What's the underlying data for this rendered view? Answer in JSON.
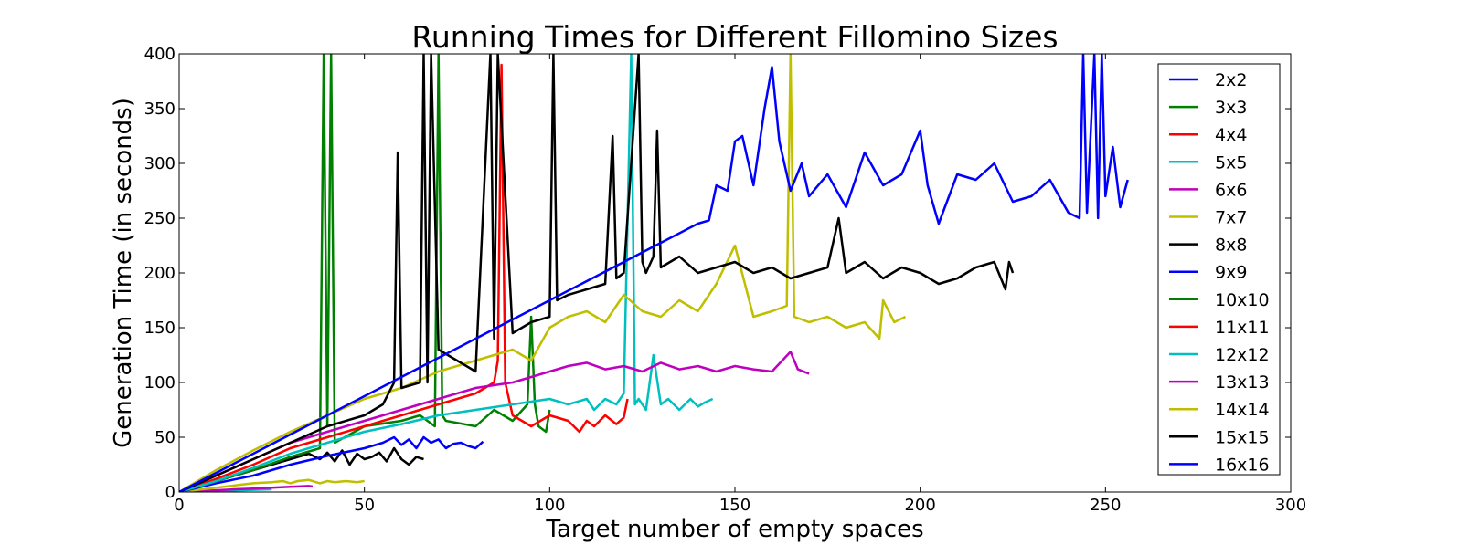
{
  "chart_data": {
    "type": "line",
    "title": "Running Times for Different Fillomino Sizes",
    "xlabel": "Target number of empty spaces",
    "ylabel": "Generation Time (in seconds)",
    "xlim": [
      0,
      300
    ],
    "ylim": [
      0,
      400
    ],
    "xticks": [
      "0",
      "50",
      "100",
      "150",
      "200",
      "250",
      "300"
    ],
    "yticks": [
      "0",
      "50",
      "100",
      "150",
      "200",
      "250",
      "300",
      "350",
      "400"
    ],
    "grid": false,
    "legend_position": "right",
    "series": [
      {
        "name": "2x2",
        "color": "#0000ff",
        "x": [
          0,
          1,
          2,
          3,
          4
        ],
        "y": [
          0,
          0.05,
          0.1,
          0.15,
          0.2
        ]
      },
      {
        "name": "3x3",
        "color": "#008000",
        "x": [
          0,
          3,
          6,
          9
        ],
        "y": [
          0,
          0.2,
          0.4,
          0.6
        ]
      },
      {
        "name": "4x4",
        "color": "#ff0000",
        "x": [
          0,
          4,
          8,
          12,
          16
        ],
        "y": [
          0,
          0.5,
          1,
          1.5,
          2
        ]
      },
      {
        "name": "5x5",
        "color": "#00bfbf",
        "x": [
          0,
          5,
          10,
          15,
          20,
          25
        ],
        "y": [
          0,
          0.5,
          1,
          1.5,
          2,
          2.5
        ]
      },
      {
        "name": "6x6",
        "color": "#bf00bf",
        "x": [
          0,
          5,
          10,
          15,
          20,
          25,
          30,
          35,
          36
        ],
        "y": [
          0,
          0.8,
          1.6,
          2.5,
          3.2,
          4.0,
          4.8,
          5.5,
          5
        ]
      },
      {
        "name": "7x7",
        "color": "#bfbf00",
        "x": [
          0,
          5,
          10,
          15,
          20,
          25,
          28,
          30,
          32,
          35,
          38,
          40,
          42,
          45,
          48,
          50
        ],
        "y": [
          0,
          2,
          4,
          6,
          8,
          9,
          10,
          8,
          10,
          11,
          8,
          10,
          9,
          10,
          9,
          10
        ]
      },
      {
        "name": "8x8",
        "color": "#000000",
        "x": [
          0,
          5,
          10,
          15,
          20,
          25,
          30,
          35,
          38,
          40,
          42,
          44,
          46,
          48,
          50,
          52,
          54,
          56,
          58,
          60,
          62,
          64,
          66
        ],
        "y": [
          0,
          5,
          10,
          15,
          20,
          25,
          30,
          35,
          30,
          36,
          28,
          38,
          25,
          35,
          30,
          32,
          36,
          28,
          40,
          30,
          25,
          32,
          30
        ]
      },
      {
        "name": "9x9",
        "color": "#0000ff",
        "x": [
          0,
          10,
          20,
          30,
          40,
          50,
          55,
          58,
          60,
          62,
          64,
          66,
          68,
          70,
          72,
          74,
          76,
          78,
          80,
          82
        ],
        "y": [
          0,
          8,
          15,
          25,
          33,
          40,
          45,
          50,
          43,
          48,
          40,
          50,
          45,
          48,
          40,
          44,
          45,
          42,
          40,
          46
        ]
      },
      {
        "name": "10x10",
        "color": "#008000",
        "x": [
          0,
          10,
          20,
          30,
          38,
          39,
          40,
          41,
          42,
          50,
          60,
          65,
          69,
          70,
          71,
          72,
          80,
          85,
          90,
          94,
          95,
          96,
          97,
          99,
          100
        ],
        "y": [
          0,
          10,
          20,
          32,
          40,
          400,
          60,
          400,
          45,
          60,
          65,
          70,
          60,
          400,
          70,
          65,
          60,
          75,
          65,
          80,
          160,
          80,
          60,
          55,
          75
        ]
      },
      {
        "name": "11x11",
        "color": "#ff0000",
        "x": [
          0,
          10,
          20,
          30,
          40,
          50,
          60,
          70,
          75,
          80,
          85,
          86,
          87,
          88,
          90,
          95,
          100,
          105,
          108,
          110,
          112,
          115,
          118,
          120,
          121
        ],
        "y": [
          0,
          12,
          25,
          40,
          50,
          60,
          70,
          80,
          85,
          90,
          100,
          120,
          390,
          100,
          70,
          60,
          70,
          65,
          55,
          65,
          60,
          70,
          62,
          68,
          85
        ]
      },
      {
        "name": "12x12",
        "color": "#00bfbf",
        "x": [
          0,
          10,
          20,
          30,
          40,
          50,
          60,
          70,
          80,
          90,
          100,
          105,
          110,
          112,
          115,
          118,
          120,
          122,
          123,
          124,
          126,
          128,
          130,
          132,
          135,
          138,
          140,
          142,
          144
        ],
        "y": [
          0,
          10,
          22,
          35,
          45,
          55,
          62,
          70,
          75,
          80,
          85,
          80,
          85,
          75,
          85,
          80,
          90,
          400,
          80,
          85,
          75,
          125,
          80,
          85,
          75,
          85,
          78,
          82,
          85
        ]
      },
      {
        "name": "13x13",
        "color": "#bf00bf",
        "x": [
          0,
          10,
          20,
          30,
          40,
          50,
          60,
          70,
          80,
          90,
          95,
          100,
          105,
          110,
          115,
          120,
          125,
          130,
          135,
          140,
          145,
          150,
          155,
          160,
          165,
          167,
          170
        ],
        "y": [
          0,
          15,
          30,
          45,
          55,
          65,
          75,
          85,
          95,
          100,
          105,
          110,
          115,
          118,
          112,
          115,
          110,
          118,
          112,
          115,
          110,
          115,
          112,
          110,
          128,
          112,
          108
        ]
      },
      {
        "name": "14x14",
        "color": "#bfbf00",
        "x": [
          0,
          10,
          20,
          30,
          40,
          50,
          60,
          70,
          80,
          90,
          95,
          100,
          105,
          110,
          115,
          120,
          125,
          130,
          135,
          140,
          145,
          150,
          155,
          160,
          164,
          165,
          166,
          170,
          175,
          180,
          185,
          189,
          190,
          193,
          196
        ],
        "y": [
          0,
          20,
          38,
          55,
          70,
          85,
          95,
          110,
          120,
          130,
          120,
          150,
          160,
          165,
          155,
          180,
          165,
          160,
          175,
          165,
          190,
          225,
          160,
          165,
          170,
          400,
          160,
          155,
          160,
          150,
          155,
          140,
          175,
          155,
          160
        ]
      },
      {
        "name": "15x15",
        "color": "#000000",
        "x": [
          0,
          10,
          20,
          30,
          40,
          50,
          55,
          58,
          59,
          60,
          65,
          66,
          67,
          68,
          70,
          75,
          80,
          84,
          85,
          86,
          90,
          95,
          100,
          101,
          102,
          105,
          110,
          115,
          117,
          118,
          120,
          124,
          125,
          126,
          128,
          129,
          130,
          135,
          140,
          145,
          150,
          155,
          160,
          165,
          170,
          175,
          178,
          180,
          185,
          190,
          195,
          200,
          205,
          210,
          215,
          220,
          223,
          224,
          225
        ],
        "y": [
          0,
          15,
          30,
          45,
          60,
          70,
          80,
          100,
          310,
          95,
          100,
          400,
          100,
          400,
          130,
          120,
          110,
          400,
          140,
          400,
          145,
          155,
          160,
          400,
          175,
          180,
          185,
          190,
          325,
          195,
          200,
          400,
          210,
          200,
          215,
          330,
          205,
          215,
          200,
          205,
          210,
          200,
          205,
          195,
          200,
          205,
          250,
          200,
          210,
          195,
          205,
          200,
          190,
          195,
          205,
          210,
          185,
          210,
          200
        ]
      },
      {
        "name": "16x16",
        "color": "#0000ff",
        "x": [
          0,
          20,
          40,
          60,
          80,
          100,
          120,
          140,
          143,
          145,
          148,
          150,
          152,
          155,
          158,
          160,
          162,
          165,
          168,
          170,
          175,
          180,
          185,
          190,
          195,
          200,
          202,
          205,
          210,
          215,
          220,
          225,
          230,
          235,
          240,
          243,
          244,
          245,
          247,
          248,
          249,
          250,
          252,
          254,
          256
        ],
        "y": [
          0,
          35,
          70,
          105,
          140,
          175,
          210,
          245,
          248,
          280,
          275,
          320,
          325,
          280,
          350,
          388,
          320,
          275,
          300,
          270,
          290,
          260,
          310,
          280,
          290,
          330,
          280,
          245,
          290,
          285,
          300,
          265,
          270,
          285,
          255,
          250,
          400,
          255,
          400,
          250,
          400,
          270,
          315,
          260,
          285
        ]
      }
    ]
  }
}
